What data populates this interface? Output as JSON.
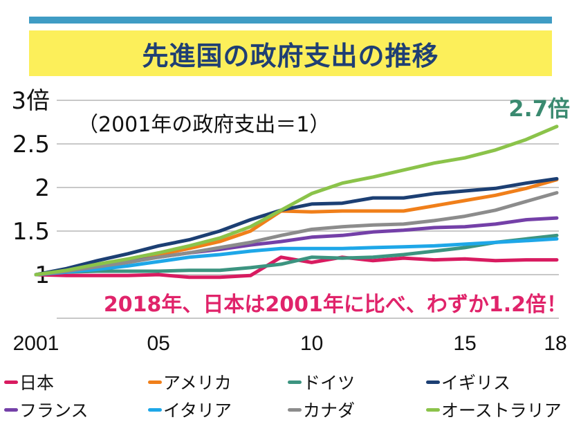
{
  "header": {
    "title": "先進国の政府支出の推移"
  },
  "chart_data": {
    "type": "line",
    "title": "先進国の政府支出の推移",
    "subtitle": "（2001年の政府支出＝1）",
    "annotation_callout": "2018年、日本は2001年に比べ、わずか1.2倍！",
    "annotation_end_label": "2.7倍",
    "xlabel": "",
    "ylabel": "",
    "x": [
      2001,
      2002,
      2003,
      2004,
      2005,
      2006,
      2007,
      2008,
      2009,
      2010,
      2011,
      2012,
      2013,
      2014,
      2015,
      2016,
      2017,
      2018
    ],
    "xticks": [
      {
        "value": 2001,
        "label": "2001"
      },
      {
        "value": 2005,
        "label": "05"
      },
      {
        "value": 2010,
        "label": "10"
      },
      {
        "value": 2015,
        "label": "15"
      },
      {
        "value": 2018,
        "label": "18"
      }
    ],
    "yticks": [
      {
        "value": 1,
        "label": "1"
      },
      {
        "value": 1.5,
        "label": "1.5"
      },
      {
        "value": 2,
        "label": "2"
      },
      {
        "value": 2.5,
        "label": "2.5"
      },
      {
        "value": 3,
        "label": "3倍"
      }
    ],
    "gridlines_y": [
      0.5,
      1,
      1.5,
      2,
      2.5,
      3
    ],
    "ylim": [
      0.5,
      3
    ],
    "xlim": [
      2001,
      2018
    ],
    "grid": true,
    "legend_position": "bottom",
    "series": [
      {
        "name": "日本",
        "color": "#d81b60",
        "values": [
          1,
          0.99,
          0.99,
          0.99,
          1.0,
          0.97,
          0.97,
          0.99,
          1.2,
          1.14,
          1.2,
          1.16,
          1.19,
          1.17,
          1.18,
          1.16,
          1.17,
          1.17
        ]
      },
      {
        "name": "アメリカ",
        "color": "#f07f1a",
        "values": [
          1,
          1.05,
          1.1,
          1.16,
          1.23,
          1.3,
          1.38,
          1.5,
          1.73,
          1.72,
          1.73,
          1.73,
          1.73,
          1.79,
          1.85,
          1.91,
          1.99,
          2.09
        ]
      },
      {
        "name": "ドイツ",
        "color": "#3c9480",
        "values": [
          1,
          1.03,
          1.04,
          1.04,
          1.04,
          1.05,
          1.05,
          1.08,
          1.12,
          1.2,
          1.19,
          1.2,
          1.23,
          1.27,
          1.31,
          1.37,
          1.41,
          1.45
        ]
      },
      {
        "name": "イギリス",
        "color": "#1c3f73",
        "values": [
          1,
          1.07,
          1.16,
          1.24,
          1.33,
          1.4,
          1.5,
          1.63,
          1.74,
          1.81,
          1.82,
          1.88,
          1.88,
          1.93,
          1.96,
          1.99,
          2.05,
          2.1
        ]
      },
      {
        "name": "フランス",
        "color": "#7440a8",
        "values": [
          1,
          1.04,
          1.1,
          1.15,
          1.2,
          1.25,
          1.29,
          1.34,
          1.38,
          1.43,
          1.45,
          1.49,
          1.51,
          1.54,
          1.55,
          1.58,
          1.63,
          1.65
        ]
      },
      {
        "name": "イタリア",
        "color": "#1ea7e8",
        "values": [
          1,
          1.03,
          1.06,
          1.1,
          1.15,
          1.2,
          1.23,
          1.27,
          1.3,
          1.3,
          1.3,
          1.31,
          1.32,
          1.33,
          1.35,
          1.37,
          1.39,
          1.41
        ]
      },
      {
        "name": "カナダ",
        "color": "#8c8c8c",
        "values": [
          1,
          1.04,
          1.09,
          1.14,
          1.2,
          1.25,
          1.31,
          1.37,
          1.45,
          1.52,
          1.55,
          1.57,
          1.58,
          1.62,
          1.67,
          1.74,
          1.84,
          1.94
        ]
      },
      {
        "name": "オーストラリア",
        "color": "#8bc34a",
        "values": [
          1,
          1.05,
          1.12,
          1.18,
          1.25,
          1.33,
          1.42,
          1.55,
          1.74,
          1.93,
          2.05,
          2.12,
          2.2,
          2.28,
          2.34,
          2.43,
          2.55,
          2.7
        ]
      }
    ]
  },
  "colors": {
    "top_rule": "#3f9cc4",
    "title_band": "#fcef5a",
    "title_text": "#1f3f74",
    "callout": "#e0236a",
    "end_label": "#3a8a70",
    "gridline": "#c8c8c8"
  }
}
